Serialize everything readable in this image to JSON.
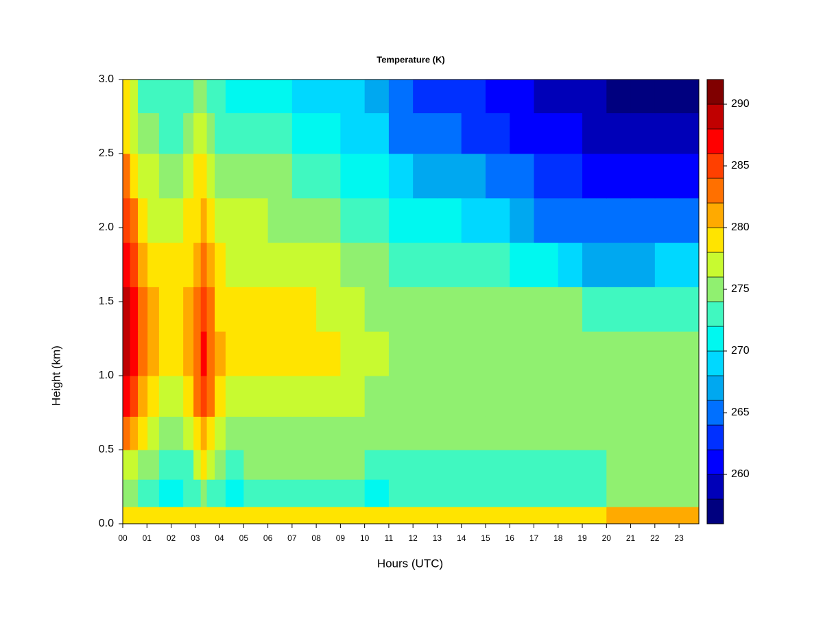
{
  "chart_data": {
    "type": "heatmap",
    "title": "Temperature (K)",
    "xlabel": "Hours (UTC)",
    "ylabel": "Height (km)",
    "xlim": [
      0,
      23.82
    ],
    "ylim": [
      0,
      3
    ],
    "xticks": [
      {
        "value": 0,
        "label": "00"
      },
      {
        "value": 1,
        "label": "01"
      },
      {
        "value": 2,
        "label": "02"
      },
      {
        "value": 3,
        "label": "03"
      },
      {
        "value": 4,
        "label": "04"
      },
      {
        "value": 5,
        "label": "05"
      },
      {
        "value": 6,
        "label": "06"
      },
      {
        "value": 7,
        "label": "07"
      },
      {
        "value": 8,
        "label": "08"
      },
      {
        "value": 9,
        "label": "09"
      },
      10,
      11,
      12,
      13,
      14,
      15,
      16,
      17,
      18,
      19,
      20,
      21,
      22,
      23
    ],
    "yticks": [
      {
        "value": 0,
        "label": "0.0"
      },
      {
        "value": 0.5,
        "label": "0.5"
      },
      {
        "value": 1,
        "label": "1.0"
      },
      {
        "value": 1.5,
        "label": "1.5"
      },
      {
        "value": 2,
        "label": "2.0"
      },
      {
        "value": 2.5,
        "label": "2.5"
      },
      {
        "value": 3,
        "label": "3.0"
      }
    ],
    "levels": [
      256,
      258,
      260,
      262,
      264,
      266,
      268,
      270,
      272,
      274,
      276,
      278,
      280,
      282,
      284,
      286,
      288,
      290,
      292
    ],
    "colors": [
      "#00007F",
      "#0000B8",
      "#0000FF",
      "#0030FF",
      "#0070FF",
      "#00A8F0",
      "#00D8FF",
      "#00F8F0",
      "#40F8C0",
      "#90F070",
      "#C8FA30",
      "#FFE400",
      "#FFAA00",
      "#FF7000",
      "#FF4000",
      "#FF0000",
      "#C00000",
      "#800000"
    ],
    "colorbar_ticks": [
      260,
      265,
      270,
      275,
      280,
      285,
      290
    ],
    "x": [
      0.15,
      0.45,
      0.8,
      1.25,
      1.75,
      2.25,
      2.75,
      3.1,
      3.35,
      3.6,
      4.0,
      4.5,
      5.5,
      6.5,
      7.5,
      8.5,
      9.5,
      10.5,
      11.5,
      12.5,
      13.5,
      14.5,
      15.5,
      16.5,
      17.5,
      18.5,
      19.5,
      20.5,
      21.5,
      22.5,
      23.5
    ],
    "y": [
      0.03,
      0.2,
      0.4,
      0.6,
      0.85,
      1.15,
      1.45,
      1.75,
      2.05,
      2.35,
      2.65,
      2.9
    ],
    "z": [
      [
        279,
        279,
        279,
        279,
        279,
        279,
        279,
        279,
        279,
        279,
        279,
        279,
        279,
        279,
        279,
        279,
        279,
        279,
        279,
        279,
        279,
        279,
        279,
        279,
        279,
        279,
        279,
        280,
        280,
        280,
        280
      ],
      [
        275,
        274,
        273,
        272,
        271.5,
        271.5,
        272,
        273,
        274,
        273,
        272,
        271.5,
        272,
        272,
        272,
        272,
        272,
        271.5,
        273,
        273,
        273,
        273,
        273,
        273,
        273,
        273,
        273,
        274,
        275,
        275,
        275
      ],
      [
        277,
        276,
        275,
        274,
        273,
        273,
        273,
        276,
        278,
        276,
        274,
        273,
        274,
        274,
        274,
        274,
        274,
        273,
        273.5,
        273.5,
        273.5,
        273.5,
        273.5,
        273.5,
        273.5,
        273.5,
        273.5,
        274,
        275,
        275,
        275
      ],
      [
        283,
        281,
        278,
        276,
        275,
        275,
        276,
        279,
        281,
        279,
        276,
        275,
        275,
        275,
        275,
        275,
        275,
        274.5,
        274,
        274,
        274,
        274,
        274,
        274,
        274,
        274,
        274,
        275,
        275,
        275,
        275
      ],
      [
        287,
        285,
        281,
        278.5,
        277,
        277,
        278,
        282,
        285,
        282,
        279,
        277,
        276.5,
        276,
        276.5,
        276.5,
        276,
        275,
        275,
        275,
        275,
        275,
        275,
        275,
        275,
        275,
        275,
        274.5,
        274.5,
        274.5,
        274.5
      ],
      [
        289,
        287,
        283,
        280,
        279,
        279,
        280,
        283,
        286,
        283,
        280,
        279,
        278.5,
        278,
        278.5,
        278,
        277.5,
        276,
        275.5,
        275.5,
        275.5,
        275,
        275,
        275,
        275,
        274.5,
        274.5,
        274.5,
        274,
        274,
        274
      ],
      [
        289,
        286,
        282,
        280,
        279,
        279,
        280,
        283,
        285,
        282,
        279.5,
        278.5,
        278,
        278,
        278,
        277.5,
        277,
        275.5,
        275,
        275,
        275,
        274.5,
        274.5,
        274,
        274,
        274,
        273.5,
        273,
        272.5,
        272,
        272
      ],
      [
        287,
        284,
        280,
        278.5,
        278,
        278,
        279,
        281,
        283,
        280,
        278,
        277.5,
        277,
        277,
        276.5,
        276,
        275.5,
        274,
        273.5,
        273.5,
        273,
        272.5,
        272,
        271,
        270,
        268,
        267,
        267,
        267,
        268,
        268
      ],
      [
        285,
        282,
        279,
        277.5,
        277,
        277,
        278,
        279,
        281,
        279,
        277,
        276.5,
        276,
        275.5,
        275,
        274,
        273.5,
        272,
        271,
        270.5,
        270,
        269.5,
        268,
        266.5,
        265,
        264,
        264,
        264,
        264.5,
        265,
        265
      ],
      [
        282,
        279.5,
        277,
        276,
        275.5,
        275.5,
        276.5,
        278,
        279,
        277,
        275.5,
        275,
        274.5,
        274,
        273,
        272,
        271.5,
        270,
        268,
        267.5,
        267,
        266,
        265,
        264,
        263,
        262,
        261.5,
        261,
        261,
        261,
        261
      ],
      [
        279.5,
        277.5,
        275,
        274,
        273.5,
        273.5,
        274.5,
        276,
        276.5,
        275,
        273.5,
        273,
        272.5,
        272,
        271,
        270,
        269.5,
        268.5,
        265.5,
        265,
        264.5,
        263.5,
        262.5,
        261.5,
        261,
        260,
        259.5,
        259,
        259,
        259,
        259
      ],
      [
        278,
        276,
        273.5,
        272.5,
        272,
        272,
        273,
        274,
        275,
        273.5,
        272,
        271.5,
        271,
        270.5,
        269.5,
        268.5,
        268,
        267.5,
        264,
        263.5,
        263,
        262,
        261,
        260,
        259.5,
        258.5,
        258,
        257.5,
        257.5,
        257.5,
        257.5
      ]
    ]
  }
}
